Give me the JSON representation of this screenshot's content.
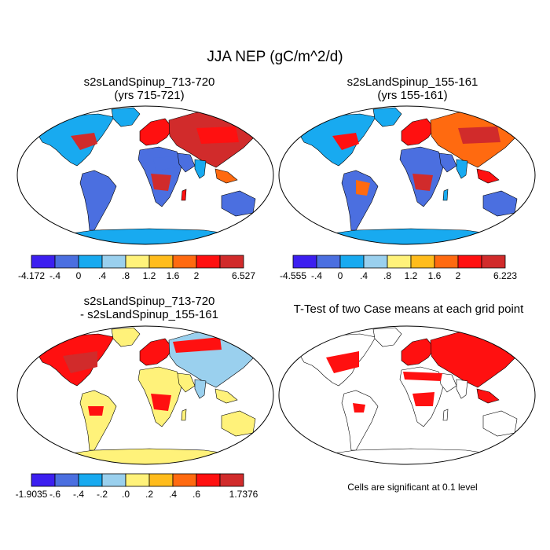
{
  "title": "JJA NEP (gC/m^2/d)",
  "panels": [
    {
      "title1": "s2sLandSpinup_713-720",
      "title2": "(yrs 715-721)",
      "colorbar": {
        "labels": [
          "-4.172",
          "-.4",
          "0",
          ".4",
          ".8",
          "1.2",
          "1.6",
          "2",
          "6.527"
        ],
        "colors": [
          "#3c1ff0",
          "#4b6fe0",
          "#18aaf0",
          "#9ad0ee",
          "#fff27a",
          "#ffbc1c",
          "#ff6a10",
          "#ff1010",
          "#d12b2b"
        ]
      }
    },
    {
      "title1": "s2sLandSpinup_155-161",
      "title2": "(yrs 155-161)",
      "colorbar": {
        "labels": [
          "-4.555",
          "-.4",
          "0",
          ".4",
          ".8",
          "1.2",
          "1.6",
          "2",
          "6.223"
        ],
        "colors": [
          "#3c1ff0",
          "#4b6fe0",
          "#18aaf0",
          "#9ad0ee",
          "#fff27a",
          "#ffbc1c",
          "#ff6a10",
          "#ff1010",
          "#d12b2b"
        ]
      }
    },
    {
      "title1": "s2sLandSpinup_713-720",
      "title2": "- s2sLandSpinup_155-161",
      "colorbar": {
        "labels": [
          "-1.9035",
          "-.6",
          "-.4",
          "-.2",
          ".0",
          ".2",
          ".4",
          ".6",
          "1.7376"
        ],
        "colors": [
          "#3c1ff0",
          "#4b6fe0",
          "#18aaf0",
          "#9ad0ee",
          "#fff27a",
          "#ffbc1c",
          "#ff6a10",
          "#ff1010",
          "#d12b2b"
        ]
      }
    },
    {
      "title1": "T-Test of two Case means at each grid point",
      "title2": ""
    }
  ],
  "note": "Cells are significant at 0.1 level"
}
